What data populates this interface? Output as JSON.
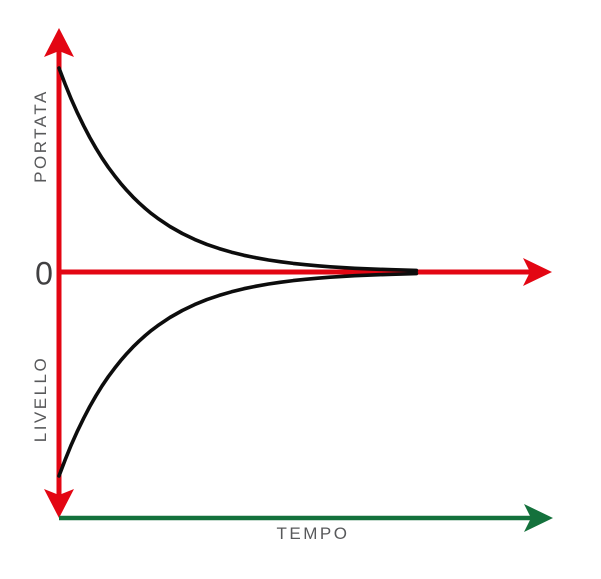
{
  "colors": {
    "axis_red": "#e30613",
    "time_axis_green": "#14713c",
    "curve_black": "#0d0d0d",
    "label_gray": "#58595b",
    "origin_gray": "#414042",
    "background": "#ffffff"
  },
  "chart_data": {
    "type": "line",
    "title": "",
    "xlabel": "TEMPO",
    "ylabel_upper": "PORTATA",
    "ylabel_lower": "LIVELLO",
    "origin_label": "0",
    "xlim": [
      0,
      10
    ],
    "ylim": [
      -1.2,
      1.2
    ],
    "grid": false,
    "legend": "none",
    "axes_style": {
      "y_axis": "red, double-headed arrow (up and down)",
      "x_axis": "red, arrow right at level 0",
      "time_axis": "green, arrow right, below the plot"
    },
    "x": [
      0,
      0.125,
      0.25,
      0.375,
      0.5,
      0.625,
      0.75,
      0.875,
      1,
      1.125,
      1.25,
      1.375,
      1.5,
      1.625,
      1.75,
      1.875,
      2,
      2.25,
      2.5,
      2.75,
      3,
      3.25,
      3.5,
      3.75,
      4,
      4.25,
      4.5,
      4.75,
      5,
      5.25,
      5.5,
      5.75,
      6,
      6.25,
      6.5,
      6.75,
      7,
      7.25
    ],
    "series": [
      {
        "name": "PORTATA (flow rate) exponential decay toward 0",
        "values": [
          1,
          0.92,
          0.8465,
          0.7788,
          0.7165,
          0.6592,
          0.6065,
          0.558,
          0.5134,
          0.4724,
          0.4346,
          0.3999,
          0.3679,
          0.3385,
          0.3114,
          0.2865,
          0.2636,
          0.2231,
          0.1889,
          0.1599,
          0.1353,
          0.1146,
          0.097,
          0.0821,
          0.0695,
          0.0588,
          0.0498,
          0.0421,
          0.0357,
          0.0302,
          0.0256,
          0.0216,
          0.0183,
          0.0155,
          0.0131,
          0.0111,
          0.0094,
          0.008
        ]
      },
      {
        "name": "LIVELLO (level) exponential rise toward 0 from below",
        "values": [
          -1,
          -0.92,
          -0.8465,
          -0.7788,
          -0.7165,
          -0.6592,
          -0.6065,
          -0.558,
          -0.5134,
          -0.4724,
          -0.4346,
          -0.3999,
          -0.3679,
          -0.3385,
          -0.3114,
          -0.2865,
          -0.2636,
          -0.2231,
          -0.1889,
          -0.1599,
          -0.1353,
          -0.1146,
          -0.097,
          -0.0821,
          -0.0695,
          -0.0588,
          -0.0498,
          -0.0421,
          -0.0357,
          -0.0302,
          -0.0256,
          -0.0216,
          -0.0183,
          -0.0155,
          -0.0131,
          -0.0111,
          -0.0094,
          -0.008
        ]
      }
    ]
  }
}
